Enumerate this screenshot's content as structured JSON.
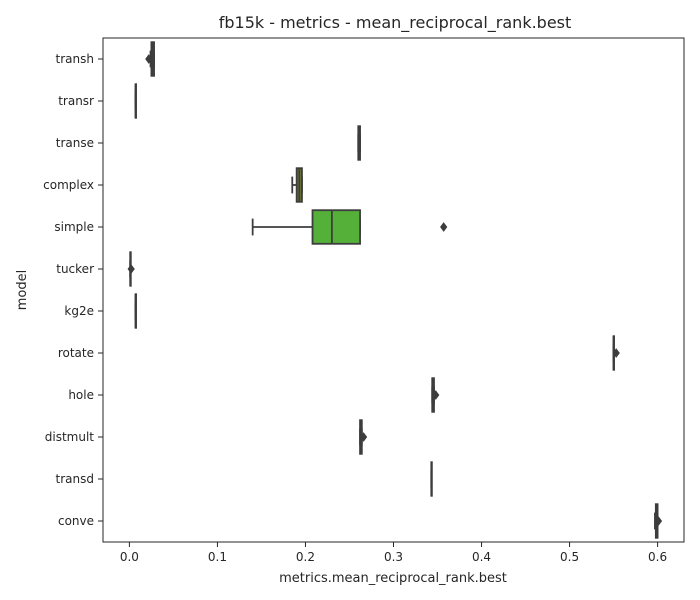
{
  "chart_data": {
    "type": "boxplot",
    "orientation": "horizontal",
    "title": "fb15k - metrics - mean_reciprocal_rank.best",
    "xlabel": "metrics.mean_reciprocal_rank.best",
    "ylabel": "model",
    "xlim": [
      -0.03,
      0.63
    ],
    "xticks": [
      0.0,
      0.1,
      0.2,
      0.3,
      0.4,
      0.5,
      0.6
    ],
    "xtick_labels": [
      "0.0",
      "0.1",
      "0.2",
      "0.3",
      "0.4",
      "0.5",
      "0.6"
    ],
    "grid": false,
    "categories": [
      "transh",
      "transr",
      "transe",
      "complex",
      "simple",
      "tucker",
      "kg2e",
      "rotate",
      "hole",
      "distmult",
      "transd",
      "conve"
    ],
    "boxes": [
      {
        "model": "transh",
        "whislo": 0.024,
        "q1": 0.025,
        "med": 0.026,
        "q3": 0.028,
        "whishi": 0.028,
        "fliers": [
          0.022
        ],
        "color": "#3f6f87"
      },
      {
        "model": "transr",
        "whislo": 0.007,
        "q1": 0.007,
        "med": 0.007,
        "q3": 0.007,
        "whishi": 0.007,
        "fliers": [],
        "color": "#4f6f8f"
      },
      {
        "model": "transe",
        "whislo": 0.26,
        "q1": 0.26,
        "med": 0.261,
        "q3": 0.262,
        "whishi": 0.262,
        "fliers": [],
        "color": "#4f7a9a"
      },
      {
        "model": "complex",
        "whislo": 0.185,
        "q1": 0.19,
        "med": 0.193,
        "q3": 0.196,
        "whishi": 0.196,
        "fliers": [],
        "color": "#6b7a2f"
      },
      {
        "model": "simple",
        "whislo": 0.14,
        "q1": 0.208,
        "med": 0.23,
        "q3": 0.262,
        "whishi": 0.262,
        "fliers": [
          0.357
        ],
        "color": "#55b03a"
      },
      {
        "model": "tucker",
        "whislo": 0.001,
        "q1": 0.001,
        "med": 0.001,
        "q3": 0.001,
        "whishi": 0.001,
        "fliers": [
          0.002
        ],
        "color": "#5a9a6a"
      },
      {
        "model": "kg2e",
        "whislo": 0.007,
        "q1": 0.007,
        "med": 0.007,
        "q3": 0.007,
        "whishi": 0.007,
        "fliers": [],
        "color": "#4f8a8a"
      },
      {
        "model": "rotate",
        "whislo": 0.55,
        "q1": 0.55,
        "med": 0.55,
        "q3": 0.55,
        "whishi": 0.55,
        "fliers": [
          0.553
        ],
        "color": "#5a8a9a"
      },
      {
        "model": "hole",
        "whislo": 0.344,
        "q1": 0.344,
        "med": 0.345,
        "q3": 0.346,
        "whishi": 0.346,
        "fliers": [
          0.348
        ],
        "color": "#5a6aa0"
      },
      {
        "model": "distmult",
        "whislo": 0.262,
        "q1": 0.262,
        "med": 0.263,
        "q3": 0.264,
        "whishi": 0.264,
        "fliers": [
          0.266
        ],
        "color": "#6a5a9a"
      },
      {
        "model": "transd",
        "whislo": 0.343,
        "q1": 0.343,
        "med": 0.343,
        "q3": 0.343,
        "whishi": 0.343,
        "fliers": [],
        "color": "#7a5a9a"
      },
      {
        "model": "conve",
        "whislo": 0.597,
        "q1": 0.598,
        "med": 0.599,
        "q3": 0.6,
        "whishi": 0.6,
        "fliers": [
          0.601
        ],
        "color": "#8a5a8a"
      }
    ]
  }
}
